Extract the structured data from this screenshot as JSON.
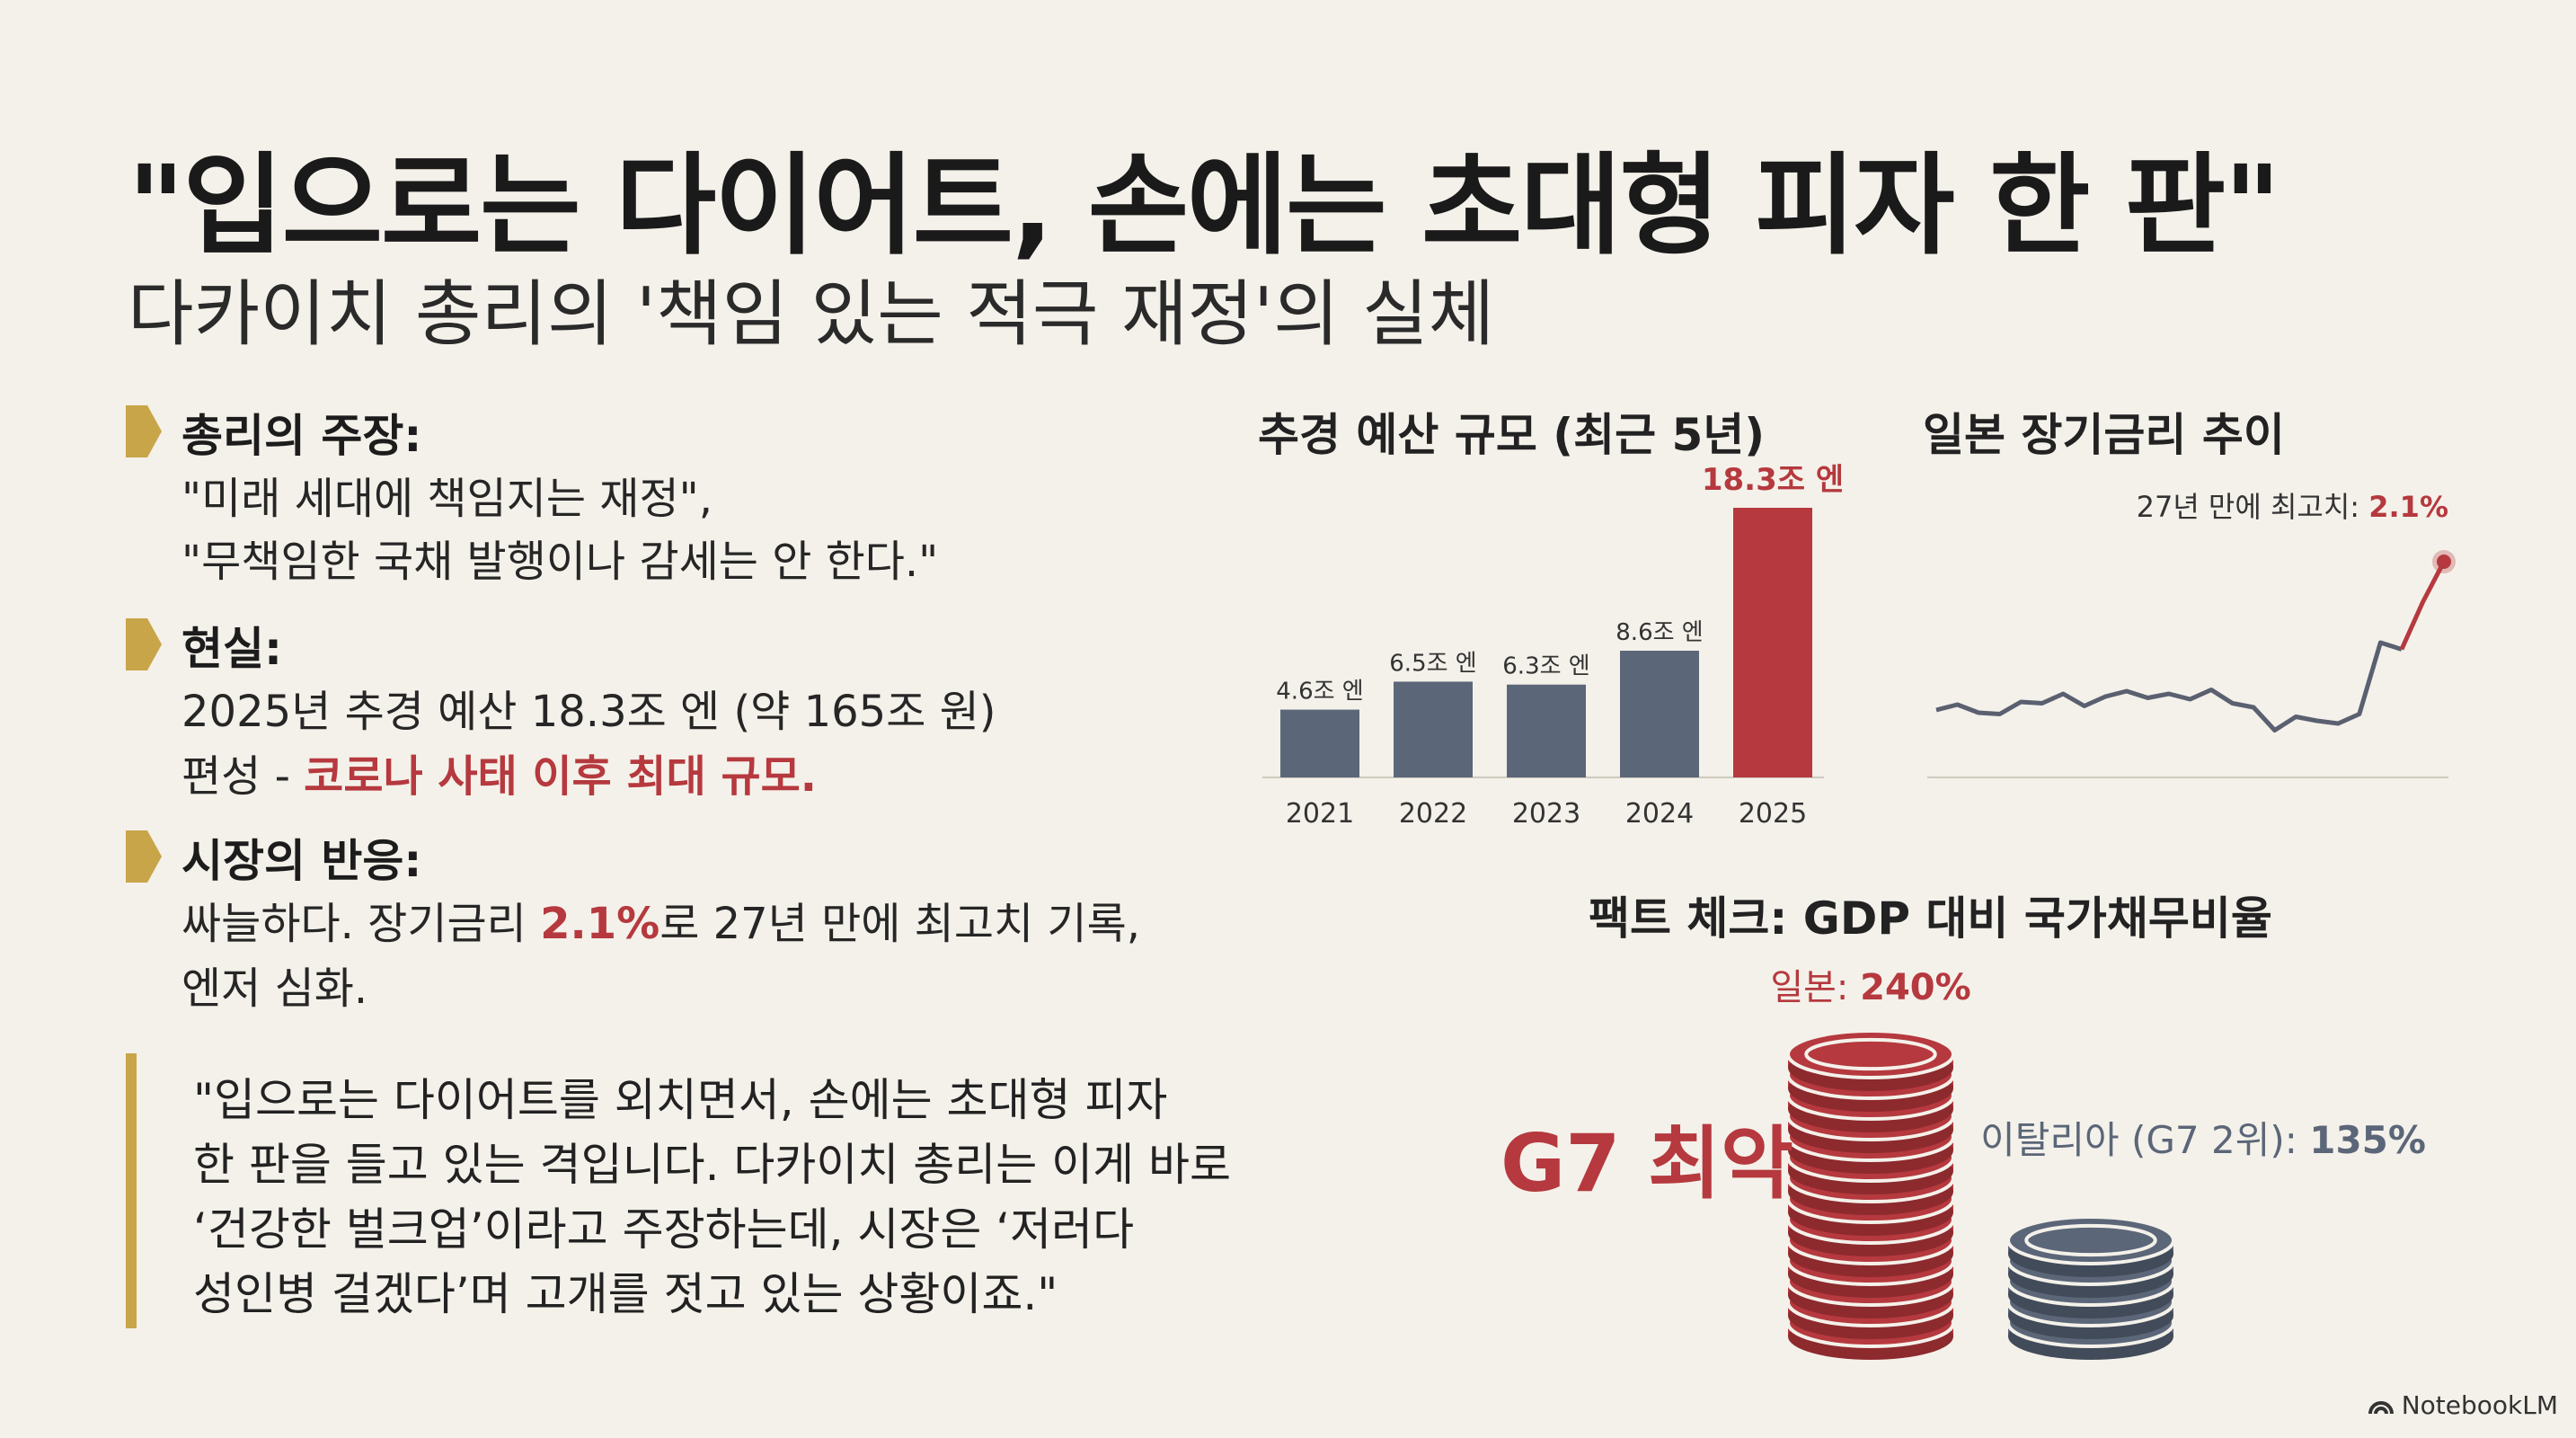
{
  "title": "\"입으로는 다이어트, 손에는 초대형 피자 한 판\"",
  "subtitle": "다카이치 총리의 '책임 있는 적극 재정'의 실체",
  "sections": [
    {
      "head": "총리의 주장:",
      "lines": [
        "\"미래 세대에 책임지는 재정\",",
        "\"무책임한 국채 발행이나 감세는 안 한다.\""
      ]
    },
    {
      "head": "현실:",
      "line1": "2025년 추경 예산 18.3조 엔 (약 165조 원)",
      "line2_prefix": "편성 - ",
      "line2_red": "코로나 사태 이후 최대 규모."
    },
    {
      "head": "시장의 반응:",
      "line1_prefix": "싸늘하다. 장기금리 ",
      "line1_red": "2.1%",
      "line1_suffix": "로 27년 만에 최고치 기록,",
      "line2": "엔저 심화."
    }
  ],
  "quote": [
    "\"입으로는 다이어트를 외치면서, 손에는 초대형 피자",
    "한 판을 들고 있는 격입니다. 다카이치 총리는 이게 바로",
    "‘건강한 벌크업’이라고 주장하는데, 시장은 ‘저러다",
    "성인병 걸겠다’며 고개를 젓고 있는 상황이죠.\""
  ],
  "colors": {
    "bar": "#5b6678",
    "highlight": "#b5393e",
    "gold": "#c9a54a",
    "line": "#5a6070"
  },
  "chart_data": [
    {
      "type": "bar",
      "title": "추경 예산 규모 (최근 5년)",
      "categories": [
        "2021",
        "2022",
        "2023",
        "2024",
        "2025"
      ],
      "values": [
        4.6,
        6.5,
        6.3,
        8.6,
        18.3
      ],
      "labels": [
        "4.6조 엔",
        "6.5조 엔",
        "6.3조 엔",
        "8.6조 엔",
        "18.3조 엔"
      ],
      "highlight_index": 4
    },
    {
      "type": "line",
      "title": "일본 장기금리 추이",
      "annotation_prefix": "27년 만에 최고치: ",
      "annotation_value": "2.1%",
      "values": [
        1.0,
        1.04,
        0.98,
        0.97,
        1.06,
        1.05,
        1.12,
        1.03,
        1.1,
        1.14,
        1.09,
        1.12,
        1.08,
        1.15,
        1.05,
        1.02,
        0.85,
        0.95,
        0.92,
        0.9,
        0.97,
        1.5,
        1.45,
        1.8,
        2.1
      ]
    },
    {
      "type": "bar",
      "title": "팩트 체크: GDP 대비 국가채무비율",
      "categories": [
        "일본",
        "이탈리아 (G7 2위)"
      ],
      "values": [
        240,
        135
      ],
      "unit": "%",
      "japan_label_prefix": "일본: ",
      "japan_label_value": "240%",
      "italy_label_prefix": "이탈리아 (G7 2위): ",
      "italy_label_value": "135%",
      "badge": "G7 최악"
    }
  ],
  "footer": "NotebookLM"
}
